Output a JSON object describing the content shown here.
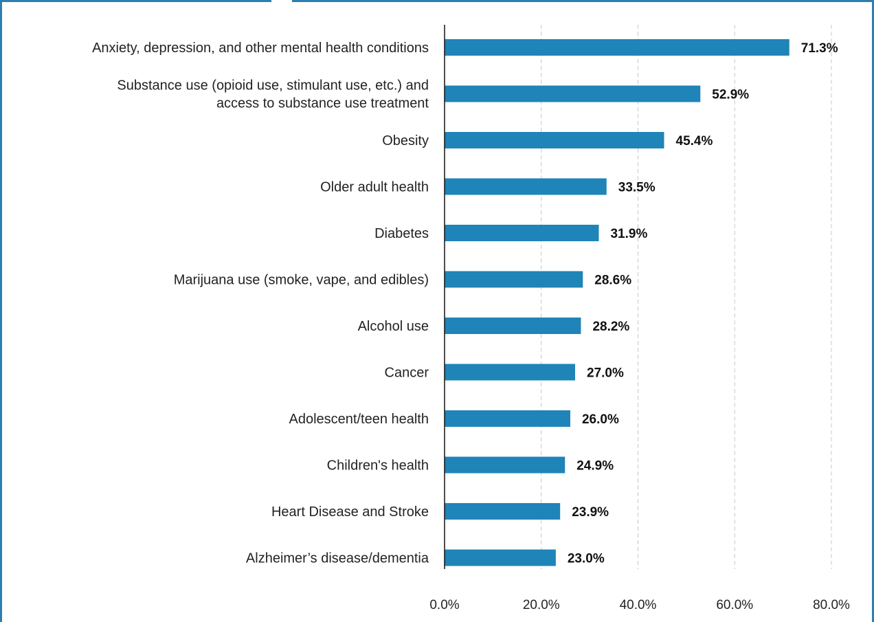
{
  "chart_data": {
    "type": "bar",
    "orientation": "horizontal",
    "categories": [
      [
        "Anxiety, depression, and other mental health conditions"
      ],
      [
        "Substance use (opioid use, stimulant use, etc.) and",
        "access to substance use treatment"
      ],
      [
        "Obesity"
      ],
      [
        "Older adult health"
      ],
      [
        "Diabetes"
      ],
      [
        "Marijuana use (smoke, vape, and edibles)"
      ],
      [
        "Alcohol use"
      ],
      [
        "Cancer"
      ],
      [
        "Adolescent/teen health"
      ],
      [
        "Children's health"
      ],
      [
        "Heart Disease and Stroke"
      ],
      [
        "Alzheimer’s disease/dementia"
      ]
    ],
    "values": [
      71.3,
      52.9,
      45.4,
      33.5,
      31.9,
      28.6,
      28.2,
      27.0,
      26.0,
      24.9,
      23.9,
      23.0
    ],
    "value_labels": [
      "71.3%",
      "52.9%",
      "45.4%",
      "33.5%",
      "31.9%",
      "28.6%",
      "28.2%",
      "27.0%",
      "26.0%",
      "24.9%",
      "23.9%",
      "23.0%"
    ],
    "xticks": [
      0,
      20,
      40,
      60,
      80
    ],
    "xtick_labels": [
      "0.0%",
      "20.0%",
      "40.0%",
      "60.0%",
      "80.0%"
    ],
    "xlim": [
      0,
      80
    ],
    "grid": "vertical dashed",
    "title": "",
    "xlabel": "",
    "ylabel": "",
    "bar_color": "#1f84b8",
    "frame_color": "#2b7fb0"
  }
}
